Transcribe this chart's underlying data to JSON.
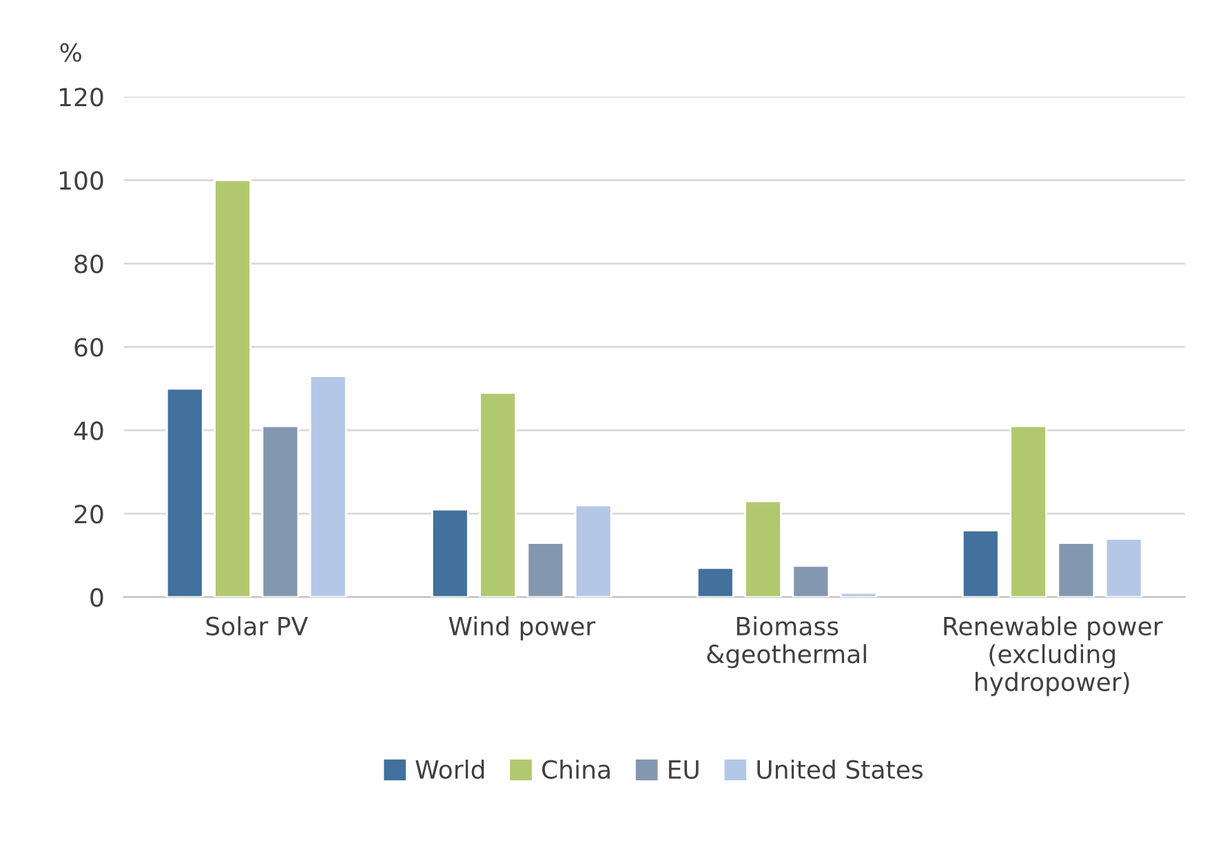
{
  "chart_data": {
    "type": "bar",
    "ylabel": "%",
    "categories": [
      "Solar PV",
      "Wind power",
      "Biomass\n&geothermal",
      "Renewable power\n(excluding\nhydropower)"
    ],
    "series": [
      {
        "name": "World",
        "color": "#41719c",
        "values": [
          50,
          21,
          7,
          16
        ]
      },
      {
        "name": "China",
        "color": "#b1c96e",
        "values": [
          100,
          49,
          23,
          41
        ]
      },
      {
        "name": "EU",
        "color": "#8497b0",
        "values": [
          41,
          13,
          7.5,
          13
        ]
      },
      {
        "name": "United States",
        "color": "#b4c7e7",
        "values": [
          53,
          22,
          1,
          14
        ]
      }
    ],
    "ylim": [
      0,
      120
    ],
    "yticks": [
      0,
      20,
      40,
      60,
      80,
      100,
      120
    ],
    "grid": "y",
    "legend": "bottom"
  }
}
